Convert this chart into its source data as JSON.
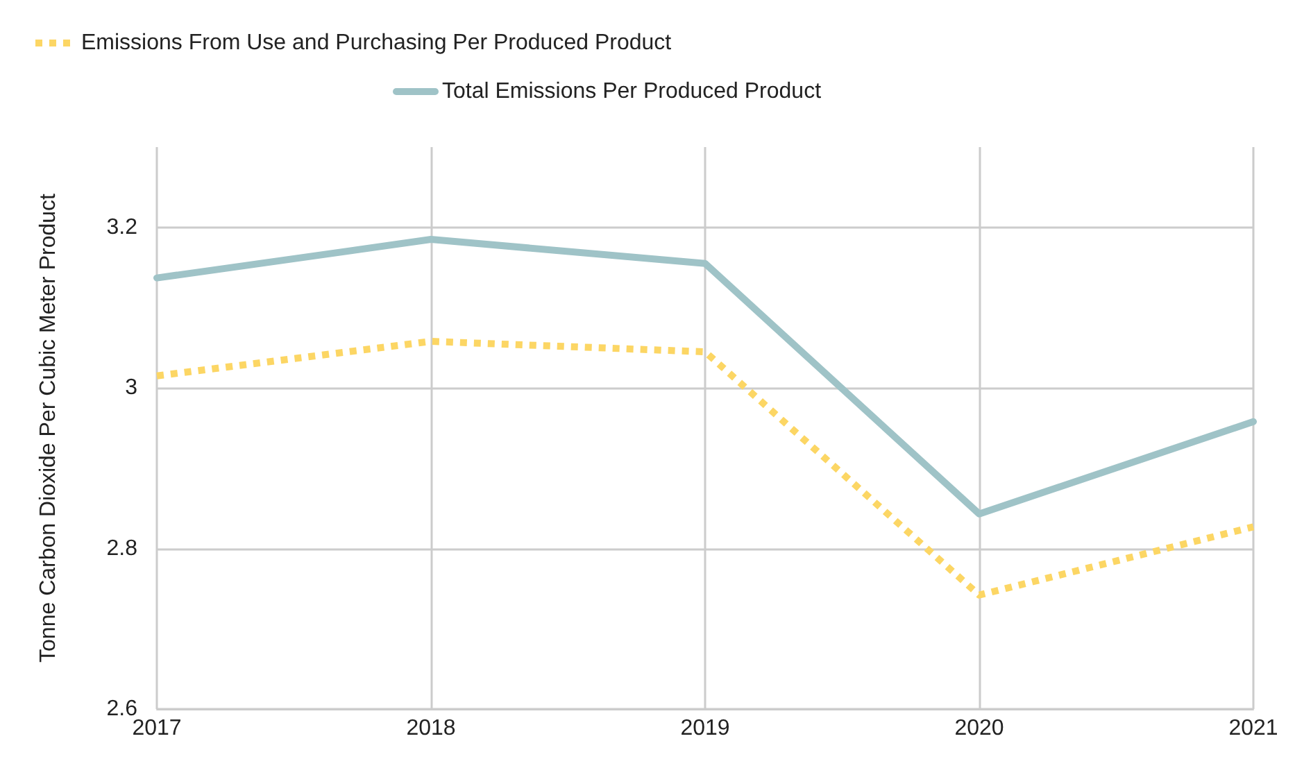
{
  "chart_data": {
    "type": "line",
    "ylabel": "Tonne Carbon Dioxide Per Cubic Meter Product",
    "categories": [
      "2017",
      "2018",
      "2019",
      "2020",
      "2021"
    ],
    "series": [
      {
        "name": "Emissions From Use and Purchasing Per Produced Product",
        "color": "#fcd664",
        "line_style": "dotted",
        "values": [
          3.015,
          3.058,
          3.045,
          2.742,
          2.827
        ]
      },
      {
        "name": "Total Emissions Per Produced Product",
        "color": "#9fc3c7",
        "line_style": "solid",
        "values": [
          3.137,
          3.185,
          3.155,
          2.843,
          2.958
        ]
      }
    ],
    "ylim": [
      2.6,
      3.3
    ],
    "yticks": [
      2.6,
      2.8,
      3,
      3.2
    ],
    "grid": true,
    "legend": "top",
    "marker": "none"
  }
}
